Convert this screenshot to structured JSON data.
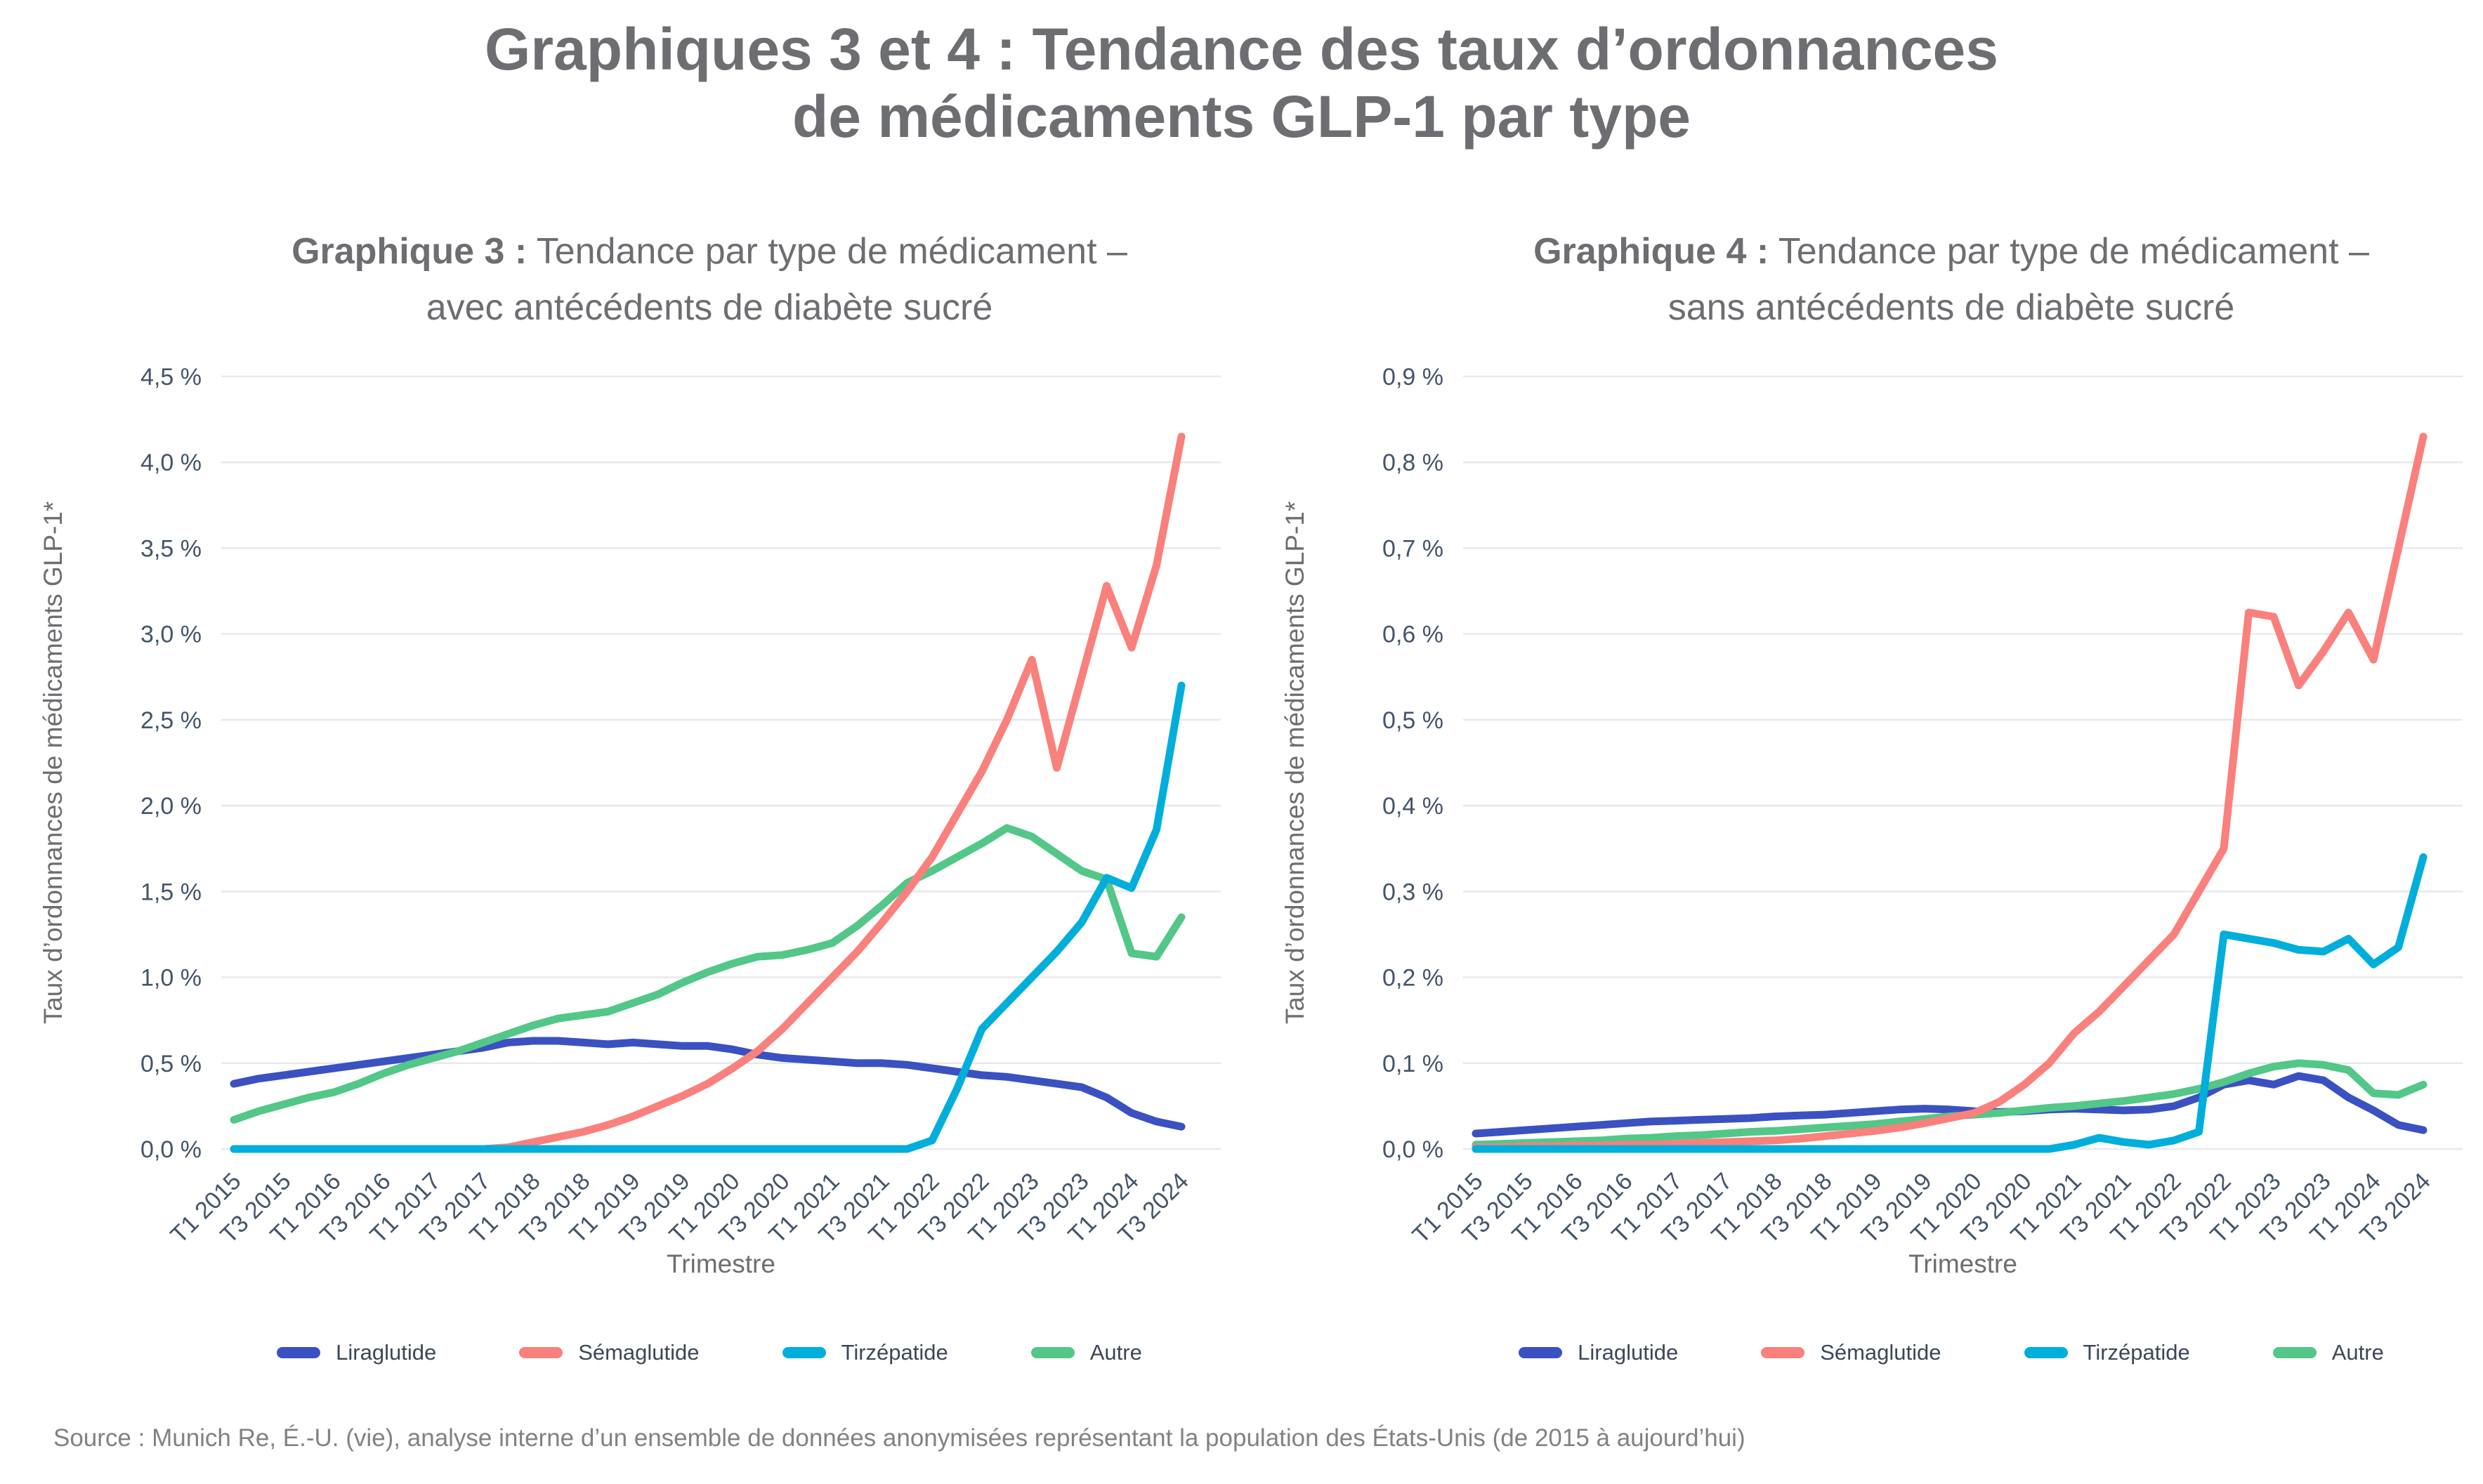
{
  "title": {
    "line1": "Graphiques 3 et 4 : Tendance des taux d’ordonnances",
    "line2": "de médicaments GLP-1 par type"
  },
  "source": "Source : Munich Re, É.-U. (vie), analyse interne d’un ensemble de données anonymisées représentant la population des États-Unis (de 2015 à aujourd’hui)",
  "colors": {
    "liraglutide": "#3B51C1",
    "semaglutide": "#F9807C",
    "tirzepatide": "#00AEDB",
    "autre": "#52C788",
    "gridline": "#E7E9EC",
    "tick_text": "#44546A",
    "axis_title_text": "#6D6E71",
    "title_text": "#6D6E71",
    "legend_text": "#3C4758",
    "source_text": "#808285"
  },
  "legend": [
    {
      "key": "liraglutide",
      "label": "Liraglutide"
    },
    {
      "key": "semaglutide",
      "label": "Sémaglutide"
    },
    {
      "key": "tirzepatide",
      "label": "Tirzépatide"
    },
    {
      "key": "autre",
      "label": "Autre"
    }
  ],
  "chart_data": [
    {
      "type": "line",
      "id": "graphique-3",
      "subtitle_bold": "Graphique 3 :",
      "subtitle_rest": " Tendance par type de médicament –",
      "subtitle_line2": "avec antécédents de diabète sucré",
      "ylabel": "Taux d’ordonnances de médicaments GLP-1*",
      "xlabel": "Trimestre",
      "ylim": [
        0,
        4.5
      ],
      "ytick_step": 0.5,
      "grid": "horizontal",
      "legend_position": "bottom",
      "y_tick_labels": [
        "0,0 %",
        "0,5 %",
        "1,0 %",
        "1,5 %",
        "2,0 %",
        "2,5 %",
        "3,0 %",
        "3,5 %",
        "4,0 %",
        "4,5 %"
      ],
      "x": [
        "T1 2015",
        "T2 2015",
        "T3 2015",
        "T4 2015",
        "T1 2016",
        "T2 2016",
        "T3 2016",
        "T4 2016",
        "T1 2017",
        "T2 2017",
        "T3 2017",
        "T4 2017",
        "T1 2018",
        "T2 2018",
        "T3 2018",
        "T4 2018",
        "T1 2019",
        "T2 2019",
        "T3 2019",
        "T4 2019",
        "T1 2020",
        "T2 2020",
        "T3 2020",
        "T4 2020",
        "T1 2021",
        "T2 2021",
        "T3 2021",
        "T4 2021",
        "T1 2022",
        "T2 2022",
        "T3 2022",
        "T4 2022",
        "T1 2023",
        "T2 2023",
        "T3 2023",
        "T4 2023",
        "T1 2024",
        "T2 2024",
        "T3 2024"
      ],
      "x_tick_every": 2,
      "series": [
        {
          "name": "Liraglutide",
          "key": "liraglutide",
          "values": [
            0.38,
            0.41,
            0.43,
            0.45,
            0.47,
            0.49,
            0.51,
            0.53,
            0.55,
            0.57,
            0.59,
            0.62,
            0.63,
            0.63,
            0.62,
            0.61,
            0.62,
            0.61,
            0.6,
            0.6,
            0.58,
            0.55,
            0.53,
            0.52,
            0.51,
            0.5,
            0.5,
            0.49,
            0.47,
            0.45,
            0.43,
            0.42,
            0.4,
            0.38,
            0.36,
            0.3,
            0.21,
            0.16,
            0.13
          ]
        },
        {
          "name": "Sémaglutide",
          "key": "semaglutide",
          "values": [
            0,
            0,
            0,
            0,
            0,
            0,
            0,
            0,
            0,
            0,
            0,
            0.01,
            0.04,
            0.07,
            0.1,
            0.14,
            0.19,
            0.25,
            0.31,
            0.38,
            0.47,
            0.57,
            0.7,
            0.85,
            1.0,
            1.15,
            1.32,
            1.5,
            1.7,
            1.95,
            2.2,
            2.5,
            2.85,
            2.22,
            2.75,
            3.28,
            2.92,
            3.4,
            4.15
          ]
        },
        {
          "name": "Tirzépatide",
          "key": "tirzepatide",
          "values": [
            0,
            0,
            0,
            0,
            0,
            0,
            0,
            0,
            0,
            0,
            0,
            0,
            0,
            0,
            0,
            0,
            0,
            0,
            0,
            0,
            0,
            0,
            0,
            0,
            0,
            0,
            0,
            0,
            0.05,
            0.35,
            0.7,
            0.85,
            1.0,
            1.15,
            1.32,
            1.58,
            1.52,
            1.86,
            2.7
          ]
        },
        {
          "name": "Autre",
          "key": "autre",
          "values": [
            0.17,
            0.22,
            0.26,
            0.3,
            0.33,
            0.38,
            0.44,
            0.49,
            0.53,
            0.57,
            0.62,
            0.67,
            0.72,
            0.76,
            0.78,
            0.8,
            0.85,
            0.9,
            0.97,
            1.03,
            1.08,
            1.12,
            1.13,
            1.16,
            1.2,
            1.3,
            1.42,
            1.55,
            1.62,
            1.7,
            1.78,
            1.87,
            1.82,
            1.72,
            1.62,
            1.57,
            1.14,
            1.12,
            1.35
          ]
        }
      ]
    },
    {
      "type": "line",
      "id": "graphique-4",
      "subtitle_bold": "Graphique 4 :",
      "subtitle_rest": " Tendance par type de médicament –",
      "subtitle_line2": "sans antécédents de diabète sucré",
      "ylabel": "Taux d’ordonnances de médicaments GLP-1*",
      "xlabel": "Trimestre",
      "ylim": [
        0,
        0.9
      ],
      "ytick_step": 0.1,
      "grid": "horizontal",
      "legend_position": "bottom",
      "y_tick_labels": [
        "0,0 %",
        "0,1 %",
        "0,2 %",
        "0,3 %",
        "0,4 %",
        "0,5 %",
        "0,6 %",
        "0,7 %",
        "0,8 %",
        "0,9 %"
      ],
      "x": [
        "T1 2015",
        "T2 2015",
        "T3 2015",
        "T4 2015",
        "T1 2016",
        "T2 2016",
        "T3 2016",
        "T4 2016",
        "T1 2017",
        "T2 2017",
        "T3 2017",
        "T4 2017",
        "T1 2018",
        "T2 2018",
        "T3 2018",
        "T4 2018",
        "T1 2019",
        "T2 2019",
        "T3 2019",
        "T4 2019",
        "T1 2020",
        "T2 2020",
        "T3 2020",
        "T4 2020",
        "T1 2021",
        "T2 2021",
        "T3 2021",
        "T4 2021",
        "T1 2022",
        "T2 2022",
        "T3 2022",
        "T4 2022",
        "T1 2023",
        "T2 2023",
        "T3 2023",
        "T4 2023",
        "T1 2024",
        "T2 2024",
        "T3 2024"
      ],
      "x_tick_every": 2,
      "series": [
        {
          "name": "Liraglutide",
          "key": "liraglutide",
          "values": [
            0.018,
            0.02,
            0.022,
            0.024,
            0.026,
            0.028,
            0.03,
            0.032,
            0.033,
            0.034,
            0.035,
            0.036,
            0.038,
            0.039,
            0.04,
            0.042,
            0.044,
            0.046,
            0.047,
            0.046,
            0.044,
            0.043,
            0.044,
            0.046,
            0.047,
            0.046,
            0.045,
            0.046,
            0.05,
            0.06,
            0.075,
            0.08,
            0.075,
            0.085,
            0.08,
            0.06,
            0.045,
            0.028,
            0.022
          ]
        },
        {
          "name": "Sémaglutide",
          "key": "semaglutide",
          "values": [
            0.002,
            0.002,
            0.003,
            0.003,
            0.004,
            0.004,
            0.005,
            0.005,
            0.006,
            0.007,
            0.008,
            0.009,
            0.01,
            0.012,
            0.015,
            0.018,
            0.021,
            0.025,
            0.03,
            0.036,
            0.042,
            0.055,
            0.075,
            0.1,
            0.135,
            0.16,
            0.19,
            0.22,
            0.25,
            0.3,
            0.35,
            0.625,
            0.62,
            0.54,
            0.58,
            0.625,
            0.57,
            0.7,
            0.83
          ]
        },
        {
          "name": "Tirzépatide",
          "key": "tirzepatide",
          "values": [
            0,
            0,
            0,
            0,
            0,
            0,
            0,
            0,
            0,
            0,
            0,
            0,
            0,
            0,
            0,
            0,
            0,
            0,
            0,
            0,
            0,
            0,
            0,
            0,
            0.005,
            0.013,
            0.008,
            0.005,
            0.01,
            0.02,
            0.25,
            0.245,
            0.24,
            0.232,
            0.23,
            0.245,
            0.215,
            0.235,
            0.34
          ]
        },
        {
          "name": "Autre",
          "key": "autre",
          "values": [
            0.005,
            0.006,
            0.007,
            0.008,
            0.009,
            0.01,
            0.012,
            0.013,
            0.015,
            0.016,
            0.018,
            0.02,
            0.021,
            0.023,
            0.025,
            0.027,
            0.029,
            0.032,
            0.035,
            0.038,
            0.04,
            0.042,
            0.045,
            0.048,
            0.05,
            0.053,
            0.056,
            0.06,
            0.064,
            0.07,
            0.078,
            0.088,
            0.096,
            0.1,
            0.098,
            0.092,
            0.065,
            0.063,
            0.075
          ]
        }
      ]
    }
  ]
}
